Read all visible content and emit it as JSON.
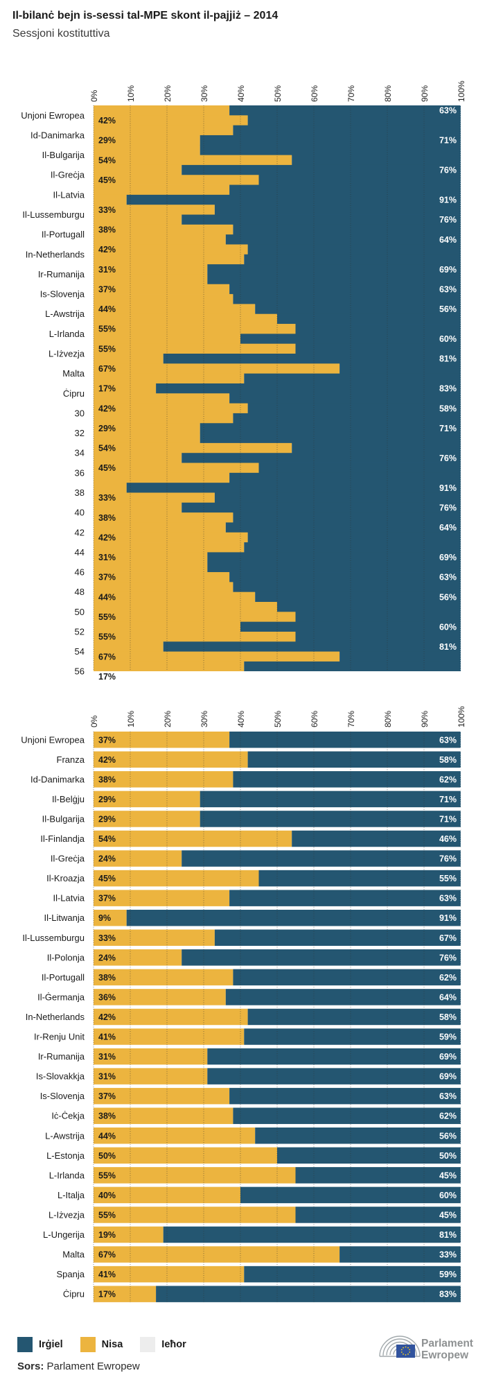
{
  "title": "Il-bilanċ bejn is-sessi tal-MPE skont il-pajjiż – 2014",
  "subtitle": "Sessjoni kostituttiva",
  "axis_ticks": [
    "0%",
    "10%",
    "20%",
    "30%",
    "40%",
    "50%",
    "60%",
    "70%",
    "80%",
    "90%",
    "100%"
  ],
  "legend": {
    "items": [
      {
        "label": "Irġiel",
        "color": "#245671"
      },
      {
        "label": "Nisa",
        "color": "#ECB43F"
      },
      {
        "label": "Ieħor",
        "color": "#EDEDED"
      }
    ]
  },
  "source": {
    "prefix": "Sors:",
    "text": " Parlament Ewropew"
  },
  "logo": {
    "line1": "Parlament",
    "line2": "Ewropew"
  },
  "colors": {
    "men": "#245671",
    "women": "#ECB43F",
    "other": "#EDEDED",
    "grid": "#2f2f2f"
  },
  "chart_data": [
    {
      "type": "bar",
      "orientation": "horizontal",
      "stacked": true,
      "note_visible": "glitched half-height render of same series, repeated",
      "row_labels": [
        "Unjoni Ewropea",
        "Id-Danimarka",
        "Il-Bulgarija",
        "Il-Greċja",
        "Il-Latvia",
        "Il-Lussemburgu",
        "Il-Portugall",
        "In-Netherlands",
        "Ir-Rumanija",
        "Is-Slovenja",
        "L-Awstrija",
        "L-Irlanda",
        "L-Iżvezja",
        "Malta",
        "Ċipru",
        "30",
        "32",
        "34",
        "36",
        "38",
        "40",
        "42",
        "44",
        "46",
        "48",
        "50",
        "52",
        "54",
        "56"
      ],
      "nisa_pct": [
        37,
        42,
        38,
        29,
        29,
        54,
        24,
        45,
        37,
        9,
        33,
        24,
        38,
        36,
        42,
        41,
        31,
        31,
        37,
        38,
        44,
        50,
        55,
        40,
        55,
        19,
        67,
        41,
        17
      ],
      "left_value_labels": [
        {
          "slot": 2,
          "text": "42%"
        },
        {
          "slot": 4,
          "text": "29%"
        },
        {
          "slot": 6,
          "text": "54%"
        },
        {
          "slot": 8,
          "text": "45%"
        },
        {
          "slot": 11,
          "text": "33%"
        },
        {
          "slot": 13,
          "text": "38%"
        },
        {
          "slot": 15,
          "text": "42%"
        },
        {
          "slot": 17,
          "text": "31%"
        },
        {
          "slot": 19,
          "text": "37%"
        },
        {
          "slot": 21,
          "text": "44%"
        },
        {
          "slot": 23,
          "text": "55%"
        },
        {
          "slot": 25,
          "text": "55%"
        },
        {
          "slot": 27,
          "text": "67%"
        },
        {
          "slot": 29,
          "text": "17%"
        },
        {
          "slot": 31,
          "text": "42%"
        },
        {
          "slot": 33,
          "text": "29%"
        },
        {
          "slot": 35,
          "text": "54%"
        },
        {
          "slot": 37,
          "text": "45%"
        },
        {
          "slot": 40,
          "text": "33%"
        },
        {
          "slot": 42,
          "text": "38%"
        },
        {
          "slot": 44,
          "text": "42%"
        },
        {
          "slot": 46,
          "text": "31%"
        },
        {
          "slot": 48,
          "text": "37%"
        },
        {
          "slot": 50,
          "text": "44%"
        },
        {
          "slot": 52,
          "text": "55%"
        },
        {
          "slot": 54,
          "text": "55%"
        },
        {
          "slot": 56,
          "text": "67%"
        },
        {
          "slot": 58,
          "text": "17%"
        }
      ],
      "right_value_labels": [
        {
          "slot": 1,
          "text": "63%"
        },
        {
          "slot": 4,
          "text": "71%"
        },
        {
          "slot": 7,
          "text": "76%"
        },
        {
          "slot": 10,
          "text": "91%"
        },
        {
          "slot": 12,
          "text": "76%"
        },
        {
          "slot": 14,
          "text": "64%"
        },
        {
          "slot": 17,
          "text": "69%"
        },
        {
          "slot": 19,
          "text": "63%"
        },
        {
          "slot": 21,
          "text": "56%"
        },
        {
          "slot": 24,
          "text": "60%"
        },
        {
          "slot": 26,
          "text": "81%"
        },
        {
          "slot": 29,
          "text": "83%"
        },
        {
          "slot": 31,
          "text": "58%"
        },
        {
          "slot": 33,
          "text": "71%"
        },
        {
          "slot": 36,
          "text": "76%"
        },
        {
          "slot": 39,
          "text": "91%"
        },
        {
          "slot": 41,
          "text": "76%"
        },
        {
          "slot": 43,
          "text": "64%"
        },
        {
          "slot": 46,
          "text": "69%"
        },
        {
          "slot": 48,
          "text": "63%"
        },
        {
          "slot": 50,
          "text": "56%"
        },
        {
          "slot": 53,
          "text": "60%"
        },
        {
          "slot": 55,
          "text": "81%"
        }
      ]
    },
    {
      "type": "bar",
      "orientation": "horizontal",
      "stacked": true,
      "categories": [
        "Unjoni Ewropea",
        "Franza",
        "Id-Danimarka",
        "Il-Belġju",
        "Il-Bulgarija",
        "Il-Finlandja",
        "Il-Greċja",
        "Il-Kroazja",
        "Il-Latvia",
        "Il-Litwanja",
        "Il-Lussemburgu",
        "Il-Polonja",
        "Il-Portugall",
        "Il-Ġermanja",
        "In-Netherlands",
        "Ir-Renju Unit",
        "Ir-Rumanija",
        "Is-Slovakkja",
        "Is-Slovenja",
        "Iċ-Ċekja",
        "L-Awstrija",
        "L-Estonja",
        "L-Irlanda",
        "L-Italja",
        "L-Iżvezja",
        "L-Ungerija",
        "Malta",
        "Spanja",
        "Ċipru"
      ],
      "series": [
        {
          "name": "Nisa",
          "values": [
            37,
            42,
            38,
            29,
            29,
            54,
            24,
            45,
            37,
            9,
            33,
            24,
            38,
            36,
            42,
            41,
            31,
            31,
            37,
            38,
            44,
            50,
            55,
            40,
            55,
            19,
            67,
            41,
            17
          ]
        },
        {
          "name": "Irġiel",
          "values": [
            63,
            58,
            62,
            71,
            71,
            46,
            76,
            55,
            63,
            91,
            67,
            76,
            62,
            64,
            58,
            59,
            69,
            69,
            63,
            62,
            56,
            50,
            45,
            60,
            45,
            81,
            33,
            59,
            83
          ]
        }
      ],
      "xlim": [
        0,
        100
      ],
      "grid": true
    }
  ]
}
